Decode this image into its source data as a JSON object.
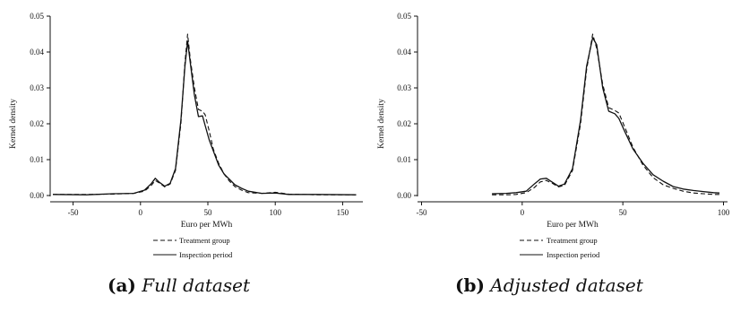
{
  "chart_data": [
    {
      "type": "line",
      "xlabel": "Euro per MWh",
      "ylabel": "Kernel density",
      "xlim": [
        -67,
        165
      ],
      "ylim": [
        0,
        0.05
      ],
      "xticks": [
        -50,
        0,
        50,
        100,
        150
      ],
      "xtick_labels": [
        "-50",
        "0",
        "50",
        "100",
        "150"
      ],
      "yticks": [
        0,
        0.01,
        0.02,
        0.03,
        0.04,
        0.05
      ],
      "ytick_labels": [
        "0.00",
        "0.01",
        "0.02",
        "0.03",
        "0.04",
        "0.05"
      ],
      "legend_position": "bottom",
      "caption": {
        "tag": "(a)",
        "text": "Full dataset"
      },
      "series": [
        {
          "name": "Treatment group",
          "style": "dashed",
          "x": [
            -65,
            -40,
            -20,
            -5,
            3,
            8,
            11,
            14,
            18,
            22,
            26,
            30,
            33,
            35,
            37,
            40,
            43,
            46,
            48,
            51,
            54,
            58,
            62,
            66,
            70,
            75,
            80,
            90,
            100,
            110,
            130,
            160
          ],
          "y": [
            0.0003,
            0.0003,
            0.0004,
            0.0006,
            0.0012,
            0.0028,
            0.0042,
            0.0035,
            0.0024,
            0.0032,
            0.007,
            0.02,
            0.037,
            0.045,
            0.038,
            0.03,
            0.024,
            0.0235,
            0.0225,
            0.018,
            0.013,
            0.009,
            0.006,
            0.004,
            0.0025,
            0.0015,
            0.0008,
            0.0006,
            0.0009,
            0.0004,
            0.0002,
            0.0002
          ]
        },
        {
          "name": "Inspection period",
          "style": "solid",
          "x": [
            -65,
            -40,
            -20,
            -5,
            3,
            8,
            11,
            14,
            18,
            22,
            26,
            30,
            33,
            35,
            37,
            40,
            43,
            46,
            48,
            51,
            54,
            58,
            62,
            66,
            70,
            75,
            80,
            90,
            100,
            110,
            130,
            160
          ],
          "y": [
            0.0003,
            0.0002,
            0.0005,
            0.0006,
            0.0015,
            0.0033,
            0.0048,
            0.0037,
            0.0026,
            0.0034,
            0.0075,
            0.021,
            0.036,
            0.043,
            0.037,
            0.028,
            0.022,
            0.0222,
            0.0195,
            0.0155,
            0.0125,
            0.0085,
            0.006,
            0.0045,
            0.003,
            0.002,
            0.0012,
            0.0006,
            0.0007,
            0.0003,
            0.0003,
            0.0002
          ]
        }
      ]
    },
    {
      "type": "line",
      "xlabel": "Euro per MWh",
      "ylabel": "Kernel density",
      "xlim": [
        -52,
        102
      ],
      "ylim": [
        0,
        0.05
      ],
      "xticks": [
        -50,
        0,
        50,
        100
      ],
      "xtick_labels": [
        "-50",
        "0",
        "50",
        "100"
      ],
      "yticks": [
        0,
        0.01,
        0.02,
        0.03,
        0.04,
        0.05
      ],
      "ytick_labels": [
        "0.00",
        "0.01",
        "0.02",
        "0.03",
        "0.04",
        "0.05"
      ],
      "legend_position": "bottom",
      "caption": {
        "tag": "(b)",
        "text": "Adjusted dataset"
      },
      "series": [
        {
          "name": "Treatment group",
          "style": "dashed",
          "x": [
            -15,
            -8,
            -3,
            2,
            6,
            9,
            12,
            15,
            18,
            21,
            25,
            29,
            32,
            35,
            37,
            40,
            43,
            46,
            48,
            51,
            55,
            60,
            65,
            70,
            75,
            80,
            85,
            90,
            95,
            98
          ],
          "y": [
            0.0002,
            0.0002,
            0.0003,
            0.0008,
            0.0022,
            0.0038,
            0.0042,
            0.0034,
            0.0024,
            0.0028,
            0.007,
            0.02,
            0.035,
            0.045,
            0.041,
            0.031,
            0.0245,
            0.0237,
            0.023,
            0.019,
            0.0135,
            0.0085,
            0.005,
            0.003,
            0.002,
            0.0012,
            0.0007,
            0.0005,
            0.0003,
            0.0003
          ]
        },
        {
          "name": "Inspection period",
          "style": "solid",
          "x": [
            -15,
            -8,
            -3,
            2,
            6,
            9,
            12,
            15,
            18,
            21,
            25,
            29,
            32,
            35,
            37,
            40,
            43,
            46,
            48,
            51,
            55,
            60,
            65,
            70,
            75,
            80,
            85,
            90,
            95,
            98
          ],
          "y": [
            0.0005,
            0.0006,
            0.0008,
            0.0012,
            0.0032,
            0.0046,
            0.0048,
            0.0037,
            0.0026,
            0.0032,
            0.0075,
            0.021,
            0.036,
            0.044,
            0.042,
            0.03,
            0.0235,
            0.0228,
            0.0215,
            0.0178,
            0.013,
            0.009,
            0.0058,
            0.004,
            0.0025,
            0.0018,
            0.0014,
            0.0011,
            0.0008,
            0.0007
          ]
        }
      ]
    }
  ]
}
